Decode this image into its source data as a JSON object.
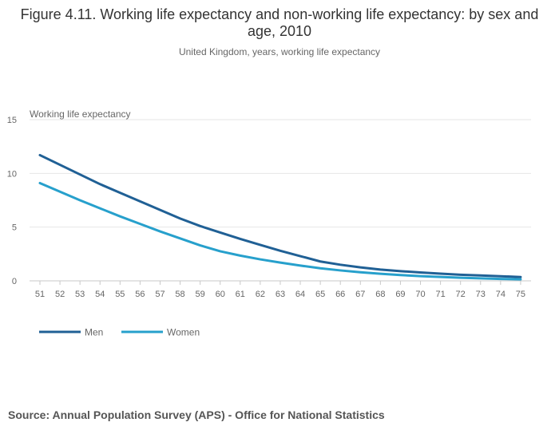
{
  "chart_data": {
    "type": "line",
    "title": "Figure 4.11. Working life expectancy and non-working life expectancy: by sex and age, 2010",
    "subtitle": "United Kingdom, years, working life expectancy",
    "ylabel": "Working life expectancy",
    "xlabel": "",
    "ylim": [
      0,
      15
    ],
    "yticks": [
      0,
      5,
      10,
      15
    ],
    "grid": true,
    "legend": "bottom-left",
    "x": [
      51,
      52,
      53,
      54,
      55,
      56,
      57,
      58,
      59,
      60,
      61,
      62,
      63,
      64,
      65,
      66,
      67,
      68,
      69,
      70,
      71,
      72,
      73,
      74,
      75
    ],
    "series": [
      {
        "name": "Men",
        "color": "#206095",
        "values": [
          11.7,
          10.8,
          9.9,
          9.0,
          8.2,
          7.4,
          6.6,
          5.8,
          5.1,
          4.5,
          3.9,
          3.35,
          2.8,
          2.3,
          1.8,
          1.5,
          1.25,
          1.05,
          0.9,
          0.78,
          0.67,
          0.57,
          0.5,
          0.43,
          0.35
        ]
      },
      {
        "name": "Women",
        "color": "#27a0cc",
        "values": [
          9.1,
          8.3,
          7.5,
          6.75,
          6.0,
          5.3,
          4.6,
          3.95,
          3.3,
          2.75,
          2.35,
          2.0,
          1.7,
          1.42,
          1.17,
          0.97,
          0.8,
          0.66,
          0.54,
          0.44,
          0.36,
          0.29,
          0.23,
          0.18,
          0.14
        ]
      }
    ]
  },
  "source": "Source: Annual Population Survey (APS) - Office for National Statistics"
}
